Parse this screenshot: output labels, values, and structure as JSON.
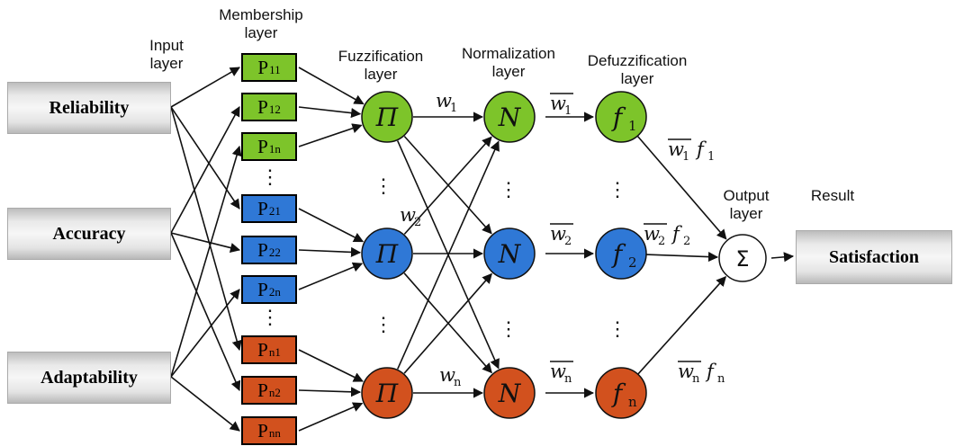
{
  "headers": {
    "membership": [
      "Membership",
      "layer"
    ],
    "input": [
      "Input",
      "layer"
    ],
    "fuzzification": [
      "Fuzzification",
      "layer"
    ],
    "normalization": [
      "Normalization",
      "layer"
    ],
    "defuzzification": [
      "Defuzzification",
      "layer"
    ],
    "output": [
      "Output",
      "layer"
    ],
    "result": "Result"
  },
  "inputs": [
    "Reliability",
    "Accuracy",
    "Adaptability"
  ],
  "result_box": "Satisfaction",
  "membership_boxes": [
    {
      "base": "P",
      "sub": "11",
      "group": "green"
    },
    {
      "base": "P",
      "sub": "12",
      "group": "green"
    },
    {
      "base": "P",
      "sub": "1n",
      "group": "green"
    },
    {
      "base": "P",
      "sub": "21",
      "group": "blue"
    },
    {
      "base": "P",
      "sub": "22",
      "group": "blue"
    },
    {
      "base": "P",
      "sub": "2n",
      "group": "blue"
    },
    {
      "base": "P",
      "sub": "n1",
      "group": "orange"
    },
    {
      "base": "P",
      "sub": "n2",
      "group": "orange"
    },
    {
      "base": "P",
      "sub": "nn",
      "group": "orange"
    }
  ],
  "node_symbols": {
    "fuzzification": "Π",
    "normalization": "N",
    "defuzzification": [
      "f1",
      "f2",
      "fn"
    ],
    "output": "Σ"
  },
  "edge_labels": {
    "w": [
      "w1",
      "w2",
      "wn"
    ],
    "wbar": [
      "w1",
      "w2",
      "wn"
    ],
    "wbar_f": [
      "w1f1",
      "w2f2",
      "wnfn"
    ]
  },
  "dots": "⋮",
  "colors": {
    "green": "#7dc42a",
    "blue": "#2f78d6",
    "orange": "#d2511e",
    "output": "#ffffff",
    "stroke": "#111111"
  }
}
